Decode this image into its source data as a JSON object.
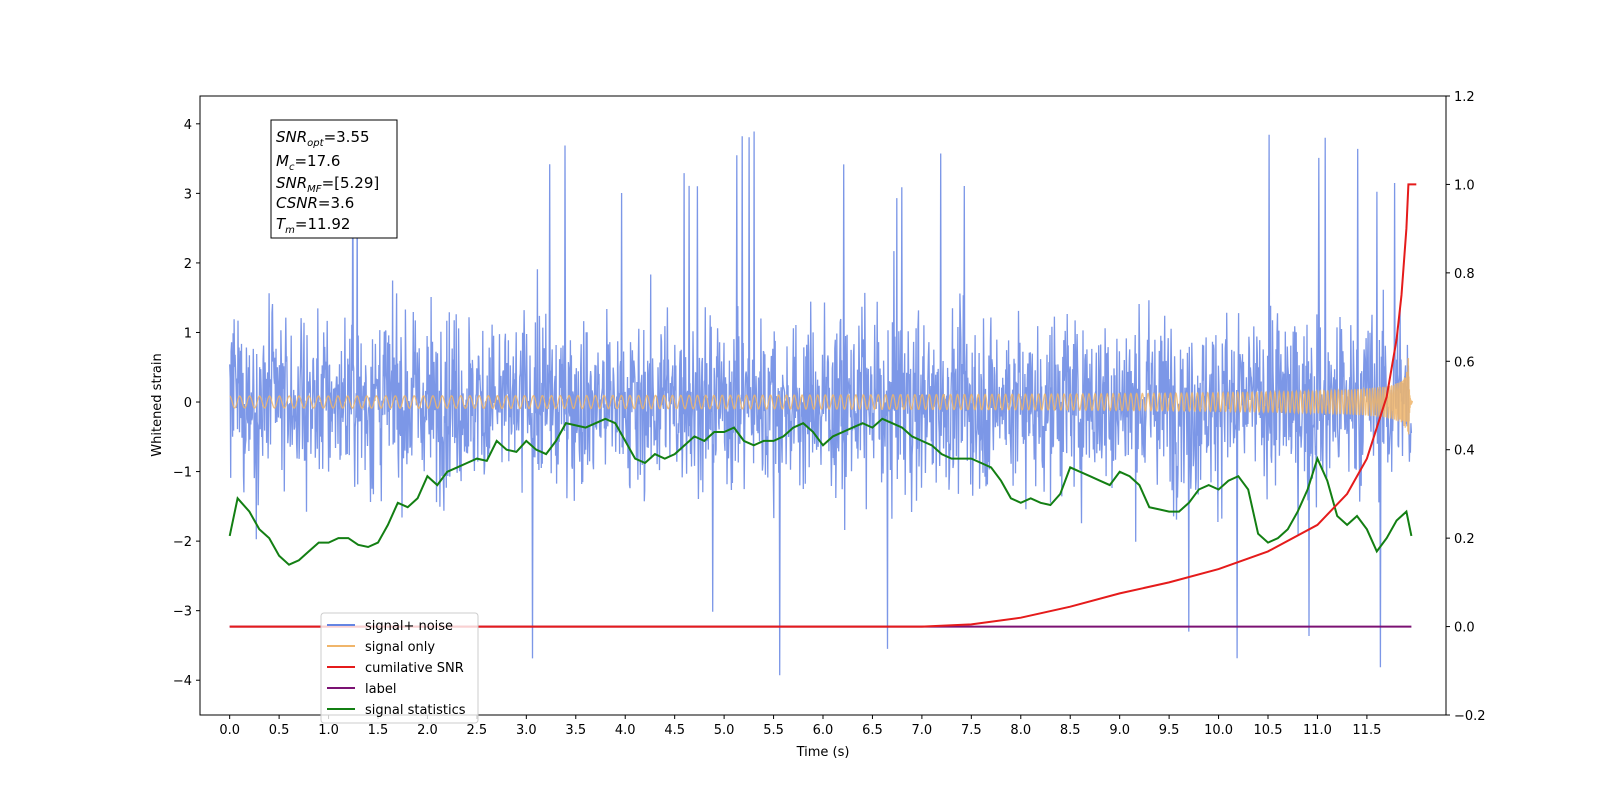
{
  "chart_data": {
    "type": "line",
    "title": "",
    "xlabel": "Time (s)",
    "ylabel": "Whitened strain",
    "ylabel_right": "",
    "xlim": [
      -0.3,
      12.3
    ],
    "ylim_left": [
      -4.5,
      4.4
    ],
    "ylim_right": [
      -0.2,
      1.2
    ],
    "grid": false,
    "legend_position": "lower-left",
    "x_ticks": [
      "0.0",
      "0.5",
      "1.0",
      "1.5",
      "2.0",
      "2.5",
      "3.0",
      "3.5",
      "4.0",
      "4.5",
      "5.0",
      "5.5",
      "6.0",
      "6.5",
      "7.0",
      "7.5",
      "8.0",
      "8.5",
      "9.0",
      "9.5",
      "10.0",
      "10.5",
      "11.0",
      "11.5"
    ],
    "y_ticks_left": [
      "−4",
      "−3",
      "−2",
      "−1",
      "0",
      "1",
      "2",
      "3",
      "4"
    ],
    "y_ticks_right": [
      "−0.2",
      "0.0",
      "0.2",
      "0.4",
      "0.6",
      "0.8",
      "1.0",
      "1.2"
    ],
    "stats": {
      "snr_opt_base": "SNR",
      "snr_opt_sub": "opt",
      "snr_opt_value": "=3.55",
      "mc_base": "M",
      "mc_sub": "c",
      "mc_value": "=17.6",
      "snr_mf_base": "SNR",
      "snr_mf_sub": "MF",
      "snr_mf_value": "=[5.29]",
      "csnr_base": "CSNR",
      "csnr_value": "=3.6",
      "tm_base": "T",
      "tm_sub": "m",
      "tm_value": "=11.92"
    },
    "series": [
      {
        "name": "signal+ noise",
        "color": "#6585e3",
        "axis": "left",
        "description_values": {
          "mean": 0.0,
          "typical_min": -2.2,
          "typical_max": 2.6,
          "extreme_max": 4.0,
          "extreme_min": -4.1,
          "t_start": 0.0,
          "t_end": 11.95
        }
      },
      {
        "name": "signal only",
        "color": "#f0b56a",
        "axis": "left",
        "chirp": {
          "t_start": 0.0,
          "t_merger": 11.92,
          "peak_amplitude": 0.7
        }
      },
      {
        "name": "cumilative SNR",
        "color": "#e51b1b",
        "axis": "right",
        "x": [
          0.0,
          6.0,
          7.0,
          7.5,
          8.0,
          8.5,
          9.0,
          9.5,
          10.0,
          10.5,
          11.0,
          11.3,
          11.5,
          11.7,
          11.8,
          11.85,
          11.9,
          11.92,
          12.0
        ],
        "y": [
          0.0,
          0.0,
          0.0,
          0.005,
          0.02,
          0.045,
          0.075,
          0.1,
          0.13,
          0.17,
          0.23,
          0.3,
          0.38,
          0.52,
          0.65,
          0.75,
          0.9,
          1.0,
          1.0
        ]
      },
      {
        "name": "label",
        "color": "#7b1273",
        "axis": "right",
        "x": [
          0.0,
          11.95
        ],
        "y": [
          0.0,
          0.0
        ]
      },
      {
        "name": "signal statistics",
        "color": "#137f13",
        "axis": "right",
        "x": [
          0.0,
          0.08,
          0.2,
          0.3,
          0.4,
          0.5,
          0.6,
          0.7,
          0.8,
          0.9,
          1.0,
          1.1,
          1.2,
          1.3,
          1.4,
          1.5,
          1.6,
          1.7,
          1.8,
          1.9,
          2.0,
          2.1,
          2.2,
          2.3,
          2.4,
          2.5,
          2.6,
          2.7,
          2.8,
          2.9,
          3.0,
          3.1,
          3.2,
          3.3,
          3.4,
          3.5,
          3.6,
          3.7,
          3.8,
          3.9,
          4.0,
          4.1,
          4.2,
          4.3,
          4.4,
          4.5,
          4.6,
          4.7,
          4.8,
          4.9,
          5.0,
          5.1,
          5.2,
          5.3,
          5.4,
          5.5,
          5.6,
          5.7,
          5.8,
          5.9,
          6.0,
          6.1,
          6.2,
          6.3,
          6.4,
          6.5,
          6.6,
          6.7,
          6.8,
          6.9,
          7.0,
          7.1,
          7.2,
          7.3,
          7.4,
          7.5,
          7.6,
          7.7,
          7.8,
          7.9,
          8.0,
          8.1,
          8.2,
          8.3,
          8.4,
          8.5,
          8.6,
          8.7,
          8.8,
          8.9,
          9.0,
          9.1,
          9.2,
          9.3,
          9.4,
          9.5,
          9.6,
          9.7,
          9.8,
          9.9,
          10.0,
          10.1,
          10.2,
          10.3,
          10.4,
          10.5,
          10.6,
          10.7,
          10.8,
          10.9,
          11.0,
          11.1,
          11.2,
          11.3,
          11.4,
          11.5,
          11.6,
          11.7,
          11.8,
          11.9,
          11.95
        ],
        "y": [
          0.205,
          0.29,
          0.26,
          0.22,
          0.2,
          0.16,
          0.14,
          0.15,
          0.17,
          0.19,
          0.19,
          0.2,
          0.2,
          0.185,
          0.18,
          0.19,
          0.23,
          0.28,
          0.27,
          0.29,
          0.34,
          0.32,
          0.35,
          0.36,
          0.37,
          0.38,
          0.375,
          0.42,
          0.4,
          0.395,
          0.42,
          0.4,
          0.39,
          0.42,
          0.46,
          0.455,
          0.45,
          0.46,
          0.47,
          0.46,
          0.42,
          0.38,
          0.37,
          0.39,
          0.38,
          0.39,
          0.41,
          0.43,
          0.42,
          0.44,
          0.44,
          0.45,
          0.42,
          0.41,
          0.42,
          0.42,
          0.43,
          0.45,
          0.46,
          0.44,
          0.41,
          0.43,
          0.44,
          0.45,
          0.46,
          0.45,
          0.47,
          0.46,
          0.45,
          0.43,
          0.42,
          0.41,
          0.39,
          0.38,
          0.38,
          0.38,
          0.37,
          0.36,
          0.33,
          0.29,
          0.28,
          0.29,
          0.28,
          0.275,
          0.3,
          0.36,
          0.35,
          0.34,
          0.33,
          0.32,
          0.35,
          0.34,
          0.32,
          0.27,
          0.265,
          0.26,
          0.26,
          0.28,
          0.31,
          0.32,
          0.31,
          0.33,
          0.34,
          0.31,
          0.21,
          0.19,
          0.2,
          0.22,
          0.26,
          0.31,
          0.38,
          0.33,
          0.25,
          0.23,
          0.25,
          0.22,
          0.17,
          0.2,
          0.24,
          0.26,
          0.205
        ]
      }
    ]
  }
}
